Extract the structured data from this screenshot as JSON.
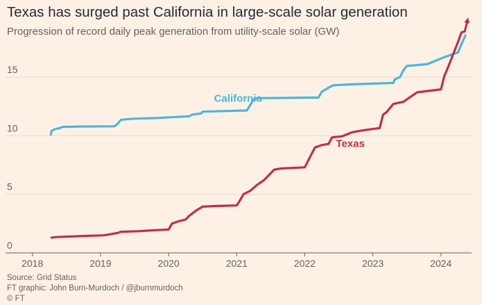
{
  "title": "Texas has surged past California in large-scale solar generation",
  "subtitle": "Progression of record daily peak generation from utility-scale solar (GW)",
  "source": "Source: Grid Status",
  "credit": "FT graphic: John Burn-Murdoch / @jburnmurdoch",
  "copyright": "© FT",
  "colors": {
    "california": "#4bb5e0",
    "texas": "#c42d45",
    "background": "#fdf1e6",
    "grid": "#e6d9ce"
  },
  "chart_data": {
    "type": "line",
    "title": "Texas has surged past California in large-scale solar generation",
    "subtitle": "Progression of record daily peak generation from utility-scale solar (GW)",
    "xlabel": "",
    "ylabel": "",
    "ylim": [
      0,
      19.5
    ],
    "xlim": [
      2017.87,
      2024.45
    ],
    "yticks": [
      0,
      5,
      10,
      15
    ],
    "xticks": [
      2018,
      2019,
      2020,
      2021,
      2022,
      2023,
      2024
    ],
    "grid": true,
    "legend": "inline labels",
    "series": [
      {
        "name": "California",
        "label_at": [
          2021.02,
          12.9
        ],
        "points": [
          [
            2018.27,
            10.1
          ],
          [
            2018.28,
            10.4
          ],
          [
            2018.33,
            10.55
          ],
          [
            2018.4,
            10.65
          ],
          [
            2018.45,
            10.75
          ],
          [
            2018.7,
            10.78
          ],
          [
            2019.2,
            10.8
          ],
          [
            2019.25,
            11.0
          ],
          [
            2019.3,
            11.35
          ],
          [
            2019.38,
            11.4
          ],
          [
            2019.5,
            11.45
          ],
          [
            2019.8,
            11.5
          ],
          [
            2020.3,
            11.65
          ],
          [
            2020.35,
            11.8
          ],
          [
            2020.48,
            11.9
          ],
          [
            2020.5,
            12.05
          ],
          [
            2021.15,
            12.15
          ],
          [
            2021.25,
            13.1
          ],
          [
            2021.3,
            13.2
          ],
          [
            2022.2,
            13.25
          ],
          [
            2022.25,
            13.75
          ],
          [
            2022.35,
            14.1
          ],
          [
            2022.42,
            14.3
          ],
          [
            2022.8,
            14.4
          ],
          [
            2023.3,
            14.5
          ],
          [
            2023.32,
            14.8
          ],
          [
            2023.4,
            15.0
          ],
          [
            2023.45,
            15.6
          ],
          [
            2023.5,
            15.95
          ],
          [
            2023.8,
            16.1
          ],
          [
            2024.05,
            16.7
          ],
          [
            2024.25,
            17.1
          ],
          [
            2024.3,
            17.8
          ],
          [
            2024.36,
            18.55
          ]
        ]
      },
      {
        "name": "Texas",
        "label_at": [
          2022.67,
          9.05
        ],
        "points": [
          [
            2018.28,
            1.3
          ],
          [
            2018.35,
            1.35
          ],
          [
            2018.8,
            1.45
          ],
          [
            2019.05,
            1.5
          ],
          [
            2019.15,
            1.6
          ],
          [
            2019.25,
            1.7
          ],
          [
            2019.3,
            1.8
          ],
          [
            2019.55,
            1.85
          ],
          [
            2019.7,
            1.9
          ],
          [
            2020.0,
            2.0
          ],
          [
            2020.05,
            2.5
          ],
          [
            2020.15,
            2.7
          ],
          [
            2020.25,
            2.85
          ],
          [
            2020.3,
            3.15
          ],
          [
            2020.4,
            3.6
          ],
          [
            2020.5,
            3.95
          ],
          [
            2020.7,
            4.0
          ],
          [
            2021.0,
            4.05
          ],
          [
            2021.05,
            4.5
          ],
          [
            2021.1,
            5.0
          ],
          [
            2021.2,
            5.3
          ],
          [
            2021.3,
            5.8
          ],
          [
            2021.4,
            6.2
          ],
          [
            2021.45,
            6.5
          ],
          [
            2021.55,
            7.1
          ],
          [
            2021.65,
            7.2
          ],
          [
            2022.0,
            7.3
          ],
          [
            2022.07,
            8.1
          ],
          [
            2022.15,
            9.0
          ],
          [
            2022.25,
            9.2
          ],
          [
            2022.35,
            9.3
          ],
          [
            2022.4,
            9.85
          ],
          [
            2022.55,
            9.95
          ],
          [
            2022.7,
            10.3
          ],
          [
            2022.85,
            10.45
          ],
          [
            2023.1,
            10.65
          ],
          [
            2023.15,
            11.8
          ],
          [
            2023.2,
            12.0
          ],
          [
            2023.3,
            12.7
          ],
          [
            2023.45,
            12.9
          ],
          [
            2023.55,
            13.3
          ],
          [
            2023.65,
            13.7
          ],
          [
            2024.0,
            13.95
          ],
          [
            2024.05,
            15.1
          ],
          [
            2024.08,
            15.5
          ],
          [
            2024.15,
            16.5
          ],
          [
            2024.25,
            18.0
          ],
          [
            2024.3,
            18.8
          ],
          [
            2024.35,
            18.9
          ]
        ],
        "arrow_end": [
          2024.39,
          19.85
        ]
      }
    ]
  }
}
